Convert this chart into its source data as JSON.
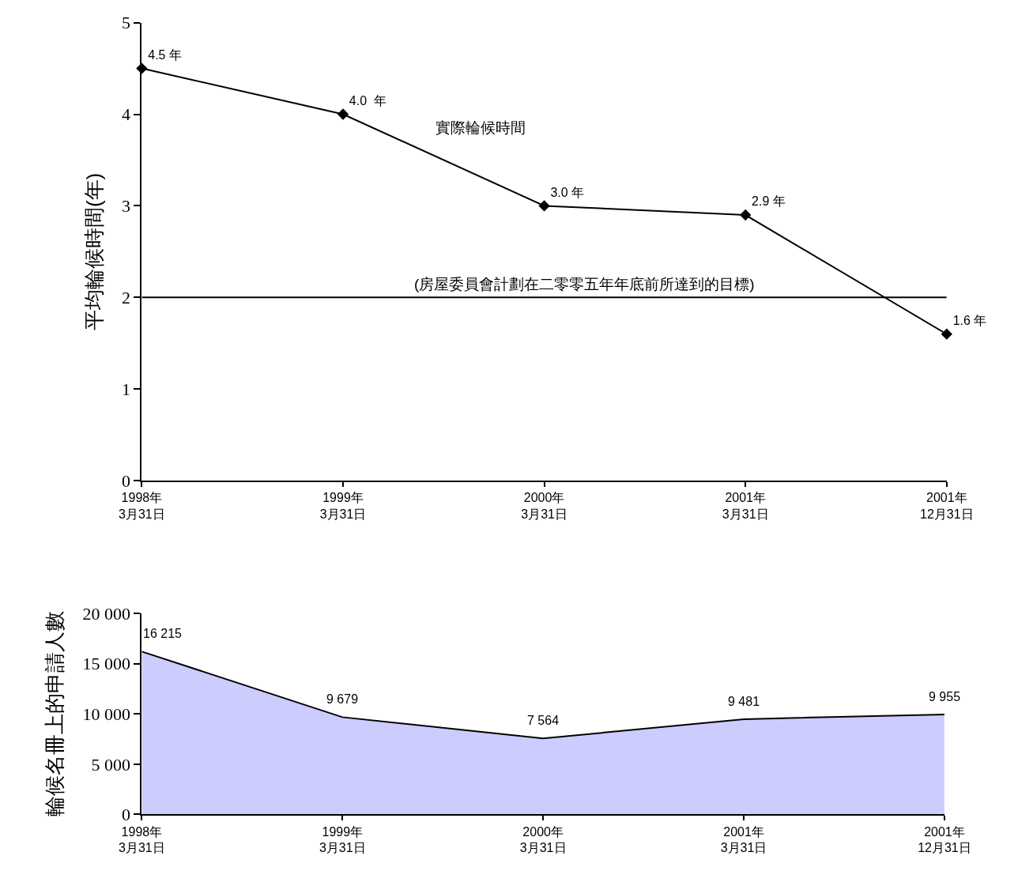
{
  "chart_data": [
    {
      "type": "line",
      "ylabel": "平均輪候時間(年)",
      "categories": [
        "1998年\n3月31日",
        "1999年\n3月31日",
        "2000年\n3月31日",
        "2001年\n3月31日",
        "2001年\n12月31日"
      ],
      "series": [
        {
          "name": "實際輪候時間",
          "color": "#000000",
          "values": [
            4.5,
            4.0,
            3.0,
            2.9,
            1.6
          ],
          "value_labels": [
            "4.5 年",
            "4.0  年",
            "3.0 年",
            "2.9 年",
            "1.6 年"
          ]
        }
      ],
      "ylim": [
        0,
        5
      ],
      "yticks": [
        0,
        1,
        2,
        3,
        4,
        5
      ],
      "marker": "diamond",
      "line_style": "solid",
      "legend": false,
      "ref_lines": [
        {
          "axis": "y",
          "value": 2,
          "label": "(房屋委員會計劃在二零零五年年底前所達到的目標)",
          "color": "#000000"
        }
      ]
    },
    {
      "type": "area",
      "ylabel": "輪候名冊上的申請人數",
      "categories": [
        "1998年\n3月31日",
        "1999年\n3月31日",
        "2000年\n3月31日",
        "2001年\n3月31日",
        "2001年\n12月31日"
      ],
      "series": [
        {
          "color": "#ccccff",
          "values": [
            16215,
            9679,
            7564,
            9481,
            9955
          ],
          "value_labels": [
            "16 215",
            "9 679",
            "7 564",
            "9 481",
            "9 955"
          ]
        }
      ],
      "ylim": [
        0,
        20000
      ],
      "yticks": [
        {
          "value": 0,
          "label": "0"
        },
        {
          "value": 5000,
          "label": "5 000"
        },
        {
          "value": 10000,
          "label": "10 000"
        },
        {
          "value": 15000,
          "label": "15 000"
        },
        {
          "value": 20000,
          "label": "20 000"
        }
      ],
      "legend": false
    }
  ]
}
